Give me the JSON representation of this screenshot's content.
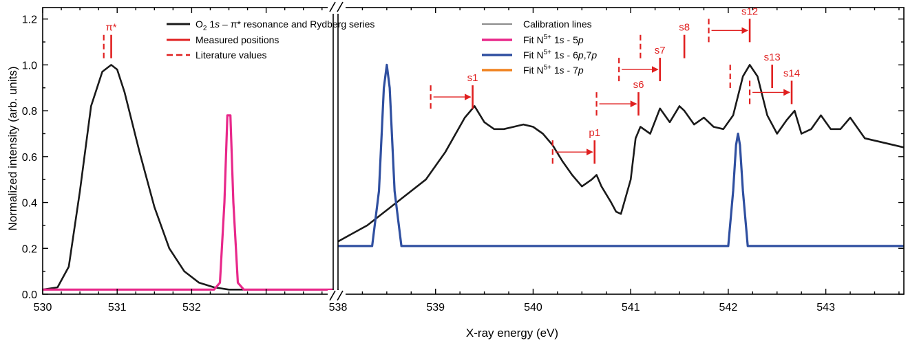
{
  "chart_data": {
    "type": "line",
    "title": "",
    "xlabel": "X-ray energy (eV)",
    "ylabel": "Normalized intensity (arb. units)",
    "ylim": [
      0,
      1.25
    ],
    "y_ticks": [
      "0.0",
      "0.2",
      "0.4",
      "0.6",
      "0.8",
      "1.0",
      "1.2"
    ],
    "axis_break": true,
    "panels": [
      {
        "xlim": [
          530,
          533.9
        ],
        "x_ticks": [
          "530",
          "531",
          "532"
        ]
      },
      {
        "xlim": [
          538,
          543.8
        ],
        "x_ticks": [
          "538",
          "539",
          "540",
          "541",
          "542",
          "543"
        ]
      }
    ],
    "legend_left": {
      "placement": "top-center",
      "entries": [
        {
          "label_parts": [
            "O",
            "2",
            " 1",
            "s",
            " – π* resonance and Rydberg series"
          ],
          "style": "line",
          "color": "#1a1a1a"
        },
        {
          "label": "Measured positions",
          "style": "line",
          "color": "#e02020"
        },
        {
          "label": "Literature values",
          "style": "dashed",
          "color": "#e02020"
        }
      ]
    },
    "legend_right": {
      "placement": "top-center",
      "entries": [
        {
          "label": "Calibration lines",
          "style": "line",
          "color": "#8a8a8a"
        },
        {
          "label_parts": [
            "Fit  N",
            "5+",
            " 1",
            "s",
            " - 5",
            "p"
          ],
          "style": "line",
          "color": "#e8288a"
        },
        {
          "label_parts": [
            "Fit  N",
            "5+",
            " 1",
            "s",
            " - 6",
            "p",
            ",7",
            "p"
          ],
          "style": "line",
          "color": "#2f4fa0"
        },
        {
          "label_parts": [
            "Fit  N",
            "5+",
            " 1",
            "s",
            " - 7",
            "p"
          ],
          "style": "line",
          "color": "#f0821e"
        }
      ]
    },
    "series": [
      {
        "name": "O2 1s – π* resonance and Rydberg series (left)",
        "color": "#1a1a1a",
        "panel": 0,
        "x": [
          530.0,
          530.2,
          530.35,
          530.5,
          530.65,
          530.8,
          530.92,
          531.0,
          531.1,
          531.3,
          531.5,
          531.7,
          531.9,
          532.1,
          532.3,
          532.5,
          532.7,
          533.0,
          533.9
        ],
        "y": [
          0.02,
          0.03,
          0.12,
          0.45,
          0.82,
          0.97,
          1.0,
          0.98,
          0.88,
          0.62,
          0.38,
          0.2,
          0.1,
          0.05,
          0.03,
          0.02,
          0.02,
          0.02,
          0.02
        ]
      },
      {
        "name": "O2 1s – π* resonance and Rydberg series (right)",
        "color": "#1a1a1a",
        "panel": 1,
        "x": [
          538.0,
          538.3,
          538.6,
          538.9,
          539.1,
          539.3,
          539.4,
          539.5,
          539.6,
          539.7,
          539.8,
          539.9,
          540.0,
          540.1,
          540.2,
          540.3,
          540.4,
          540.5,
          540.6,
          540.65,
          540.7,
          540.8,
          540.85,
          540.9,
          541.0,
          541.05,
          541.1,
          541.2,
          541.3,
          541.4,
          541.5,
          541.55,
          541.65,
          541.75,
          541.85,
          541.95,
          542.05,
          542.15,
          542.22,
          542.3,
          542.4,
          542.5,
          542.6,
          542.68,
          542.75,
          542.85,
          542.95,
          543.05,
          543.15,
          543.25,
          543.4,
          543.6,
          543.8
        ],
        "y": [
          0.23,
          0.3,
          0.4,
          0.5,
          0.62,
          0.77,
          0.82,
          0.75,
          0.72,
          0.72,
          0.73,
          0.74,
          0.73,
          0.7,
          0.65,
          0.58,
          0.52,
          0.47,
          0.5,
          0.52,
          0.47,
          0.4,
          0.36,
          0.35,
          0.5,
          0.68,
          0.73,
          0.7,
          0.81,
          0.75,
          0.82,
          0.8,
          0.74,
          0.77,
          0.73,
          0.72,
          0.78,
          0.95,
          1.0,
          0.95,
          0.78,
          0.7,
          0.76,
          0.8,
          0.7,
          0.72,
          0.78,
          0.72,
          0.72,
          0.77,
          0.68,
          0.66,
          0.64
        ]
      },
      {
        "name": "Fit N5+ 1s - 5p",
        "color": "#e8288a",
        "panel": 0,
        "x": [
          530.0,
          532.3,
          532.38,
          532.44,
          532.48,
          532.52,
          532.56,
          532.62,
          532.7,
          533.9
        ],
        "y": [
          0.02,
          0.02,
          0.05,
          0.4,
          0.78,
          0.78,
          0.4,
          0.05,
          0.02,
          0.02
        ]
      },
      {
        "name": "Fit N5+ 1s - 6p,7p",
        "color": "#2f4fa0",
        "panel": 1,
        "x": [
          538.0,
          538.35,
          538.42,
          538.47,
          538.5,
          538.53,
          538.58,
          538.65,
          542.0,
          542.05,
          542.08,
          542.1,
          542.12,
          542.15,
          542.2,
          543.8
        ],
        "y": [
          0.21,
          0.21,
          0.45,
          0.9,
          1.0,
          0.9,
          0.45,
          0.21,
          0.21,
          0.45,
          0.65,
          0.7,
          0.65,
          0.45,
          0.21,
          0.21
        ]
      },
      {
        "name": "Calibration lines",
        "color": "#8a8a8a",
        "style": "noise"
      }
    ],
    "annotations": [
      {
        "label": "π*",
        "panel": 0,
        "measured_x": 530.92,
        "literature_x": 530.82,
        "y": 1.08
      },
      {
        "label": "s1",
        "panel": 1,
        "measured_x": 539.38,
        "literature_x": 538.95,
        "y": 0.86,
        "arrow": true
      },
      {
        "label": "p1",
        "panel": 1,
        "measured_x": 540.63,
        "literature_x": 540.2,
        "y": 0.62,
        "arrow": true
      },
      {
        "label": "s6",
        "panel": 1,
        "measured_x": 541.08,
        "literature_x": 540.65,
        "y": 0.83,
        "arrow": true
      },
      {
        "label": "s7",
        "panel": 1,
        "measured_x": 541.3,
        "literature_x": 540.88,
        "y": 0.98,
        "arrow": true
      },
      {
        "label": "s8",
        "panel": 1,
        "measured_x": 541.55,
        "literature_x": 541.1,
        "y": 1.08
      },
      {
        "label": "s12",
        "panel": 1,
        "measured_x": 542.22,
        "literature_x": 541.8,
        "y": 1.15,
        "arrow": true
      },
      {
        "label": "s13",
        "panel": 1,
        "measured_x": 542.45,
        "literature_x": 542.02,
        "y": 0.95
      },
      {
        "label": "s14",
        "panel": 1,
        "measured_x": 542.65,
        "literature_x": 542.22,
        "y": 0.88,
        "arrow": true
      }
    ]
  }
}
